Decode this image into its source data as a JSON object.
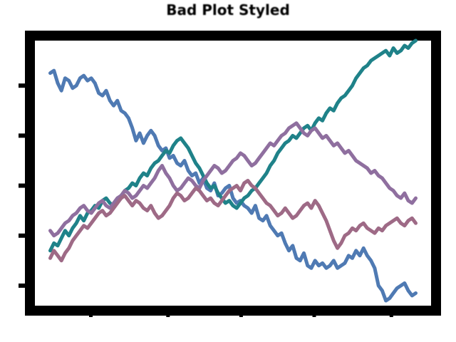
{
  "chart_data": {
    "type": "line",
    "title": "Bad Plot Styled",
    "xlabel": "",
    "ylabel": "",
    "x_tick_labels": [
      "",
      "",
      "",
      "",
      ""
    ],
    "y_tick_labels": [
      "",
      "",
      "",
      "",
      ""
    ],
    "grid": false,
    "legend": "none",
    "xlim": [
      0,
      100
    ],
    "ylim": [
      -4,
      7
    ],
    "series": [
      {
        "color": "#4f7ab3",
        "values": [
          5.5,
          5.6,
          5.1,
          4.8,
          5.3,
          5.2,
          4.9,
          5.0,
          5.3,
          5.4,
          5.2,
          5.3,
          5.1,
          4.7,
          4.6,
          4.8,
          4.4,
          4.2,
          4.4,
          4.0,
          3.9,
          3.7,
          3.3,
          2.8,
          3.1,
          2.7,
          3.0,
          3.2,
          3.0,
          2.6,
          2.4,
          2.5,
          2.1,
          2.2,
          1.9,
          1.8,
          2.0,
          1.6,
          1.4,
          1.5,
          1.1,
          1.3,
          0.9,
          0.8,
          1.1,
          0.6,
          0.7,
          0.9,
          1.0,
          0.5,
          0.3,
          0.4,
          0.2,
          0.1,
          -0.1,
          0.2,
          -0.3,
          -0.4,
          -0.2,
          -0.6,
          -0.8,
          -1.0,
          -0.9,
          -1.3,
          -1.6,
          -1.4,
          -1.9,
          -2.0,
          -1.7,
          -2.2,
          -2.3,
          -2.0,
          -2.2,
          -2.1,
          -2.3,
          -2.2,
          -2.0,
          -2.3,
          -2.2,
          -2.1,
          -1.8,
          -1.9,
          -1.6,
          -1.8,
          -1.5,
          -1.8,
          -2.0,
          -2.3,
          -3.0,
          -3.2,
          -3.6,
          -3.5,
          -3.3,
          -3.1,
          -3.0,
          -2.9,
          -3.2,
          -3.4,
          -3.3
        ]
      },
      {
        "color": "#1f8289",
        "values": [
          -1.6,
          -1.3,
          -1.4,
          -1.1,
          -0.8,
          -1.0,
          -0.7,
          -0.5,
          -0.2,
          -0.4,
          -0.1,
          0.0,
          0.2,
          0.1,
          0.4,
          0.5,
          0.3,
          0.2,
          0.4,
          0.6,
          0.8,
          0.9,
          1.1,
          1.0,
          1.3,
          1.5,
          1.4,
          1.7,
          1.9,
          2.0,
          2.2,
          2.4,
          2.3,
          2.6,
          2.8,
          2.9,
          2.7,
          2.5,
          2.2,
          1.9,
          1.7,
          1.4,
          1.1,
          0.9,
          1.0,
          0.7,
          0.5,
          0.3,
          0.4,
          0.2,
          0.1,
          0.3,
          0.5,
          0.6,
          0.8,
          0.9,
          1.1,
          1.3,
          1.5,
          1.8,
          2.0,
          2.3,
          2.5,
          2.7,
          2.8,
          3.0,
          2.9,
          3.1,
          3.3,
          3.4,
          3.2,
          3.5,
          3.7,
          3.6,
          3.9,
          4.1,
          4.0,
          4.3,
          4.5,
          4.6,
          4.8,
          5.0,
          5.3,
          5.5,
          5.7,
          5.8,
          6.0,
          6.1,
          6.2,
          6.3,
          6.4,
          6.2,
          6.5,
          6.3,
          6.4,
          6.6,
          6.5,
          6.7,
          6.8
        ]
      },
      {
        "color": "#8f6f9f",
        "values": [
          -0.8,
          -1.0,
          -0.9,
          -0.7,
          -0.5,
          -0.4,
          -0.2,
          -0.1,
          0.1,
          0.2,
          0.0,
          -0.1,
          0.1,
          0.3,
          0.4,
          0.2,
          0.1,
          0.3,
          0.5,
          0.6,
          0.8,
          0.7,
          0.5,
          0.6,
          0.8,
          1.0,
          0.9,
          1.1,
          1.3,
          1.6,
          1.8,
          1.5,
          1.3,
          1.0,
          0.8,
          0.9,
          1.1,
          1.3,
          1.2,
          1.0,
          0.9,
          1.2,
          1.4,
          1.6,
          1.8,
          1.7,
          1.5,
          1.6,
          1.8,
          2.0,
          2.1,
          2.3,
          2.2,
          2.0,
          1.8,
          1.9,
          2.1,
          2.3,
          2.5,
          2.7,
          2.6,
          2.8,
          3.0,
          3.1,
          3.3,
          3.4,
          3.5,
          3.3,
          3.1,
          3.0,
          3.2,
          3.3,
          3.1,
          2.9,
          3.0,
          2.8,
          2.6,
          2.7,
          2.5,
          2.3,
          2.4,
          2.2,
          2.0,
          1.9,
          1.8,
          1.7,
          1.5,
          1.6,
          1.4,
          1.3,
          1.1,
          0.9,
          0.8,
          0.6,
          0.5,
          0.7,
          0.4,
          0.3,
          0.5
        ]
      },
      {
        "color": "#9e6a86",
        "values": [
          -1.9,
          -1.6,
          -1.8,
          -2.0,
          -1.7,
          -1.5,
          -1.2,
          -1.0,
          -0.8,
          -0.6,
          -0.7,
          -0.5,
          -0.3,
          -0.1,
          0.0,
          -0.2,
          -0.1,
          0.1,
          0.3,
          0.5,
          0.6,
          0.4,
          0.2,
          0.4,
          0.3,
          0.1,
          0.0,
          0.2,
          -0.1,
          -0.3,
          -0.2,
          0.0,
          0.2,
          0.5,
          0.7,
          0.6,
          0.4,
          0.5,
          0.7,
          0.9,
          0.8,
          0.6,
          0.4,
          0.5,
          0.3,
          0.2,
          0.4,
          0.6,
          0.8,
          0.9,
          1.0,
          0.8,
          1.1,
          1.2,
          1.0,
          0.9,
          0.7,
          0.5,
          0.3,
          0.2,
          0.0,
          -0.2,
          -0.1,
          0.1,
          -0.1,
          -0.3,
          -0.2,
          0.0,
          0.2,
          0.3,
          0.1,
          0.4,
          0.2,
          -0.1,
          -0.4,
          -0.8,
          -1.2,
          -1.5,
          -1.3,
          -1.0,
          -0.9,
          -0.7,
          -0.8,
          -0.6,
          -0.5,
          -0.7,
          -0.8,
          -0.9,
          -0.7,
          -0.8,
          -0.6,
          -0.5,
          -0.4,
          -0.3,
          -0.5,
          -0.6,
          -0.4,
          -0.3,
          -0.5
        ]
      }
    ]
  }
}
